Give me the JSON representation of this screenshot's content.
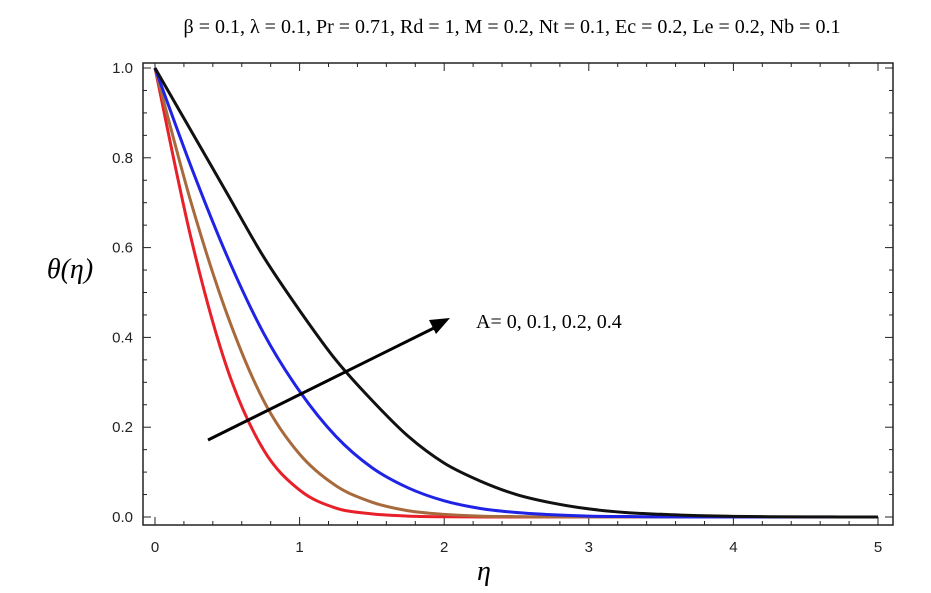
{
  "chart_data": {
    "type": "line",
    "title": "β = 0.1, λ = 0.1, Pr = 0.71, Rd = 1, M = 0.2, Nt = 0.1, Ec = 0.2, Le = 0.2, Nb = 0.1",
    "xlabel": "η",
    "ylabel": "θ(η)",
    "xlim": [
      0,
      5
    ],
    "ylim": [
      0,
      1
    ],
    "xticks": [
      "0",
      "1",
      "2",
      "3",
      "4",
      "5"
    ],
    "yticks": [
      "0.0",
      "0.2",
      "0.4",
      "0.6",
      "0.8",
      "1.0"
    ],
    "grid": false,
    "annotation": "A= 0, 0.1, 0.2, 0.4",
    "x": [
      0,
      0.25,
      0.5,
      0.75,
      1.0,
      1.25,
      1.5,
      1.75,
      2.0,
      2.25,
      2.5,
      2.75,
      3.0,
      3.25,
      3.5,
      3.75,
      4.0,
      4.25,
      4.5,
      4.75,
      5.0
    ],
    "series": [
      {
        "color": "#e8202a",
        "values": [
          1.0,
          0.62,
          0.33,
          0.15,
          0.06,
          0.02,
          0.007,
          0.002,
          0.0005,
          0.0001,
          0,
          0,
          0,
          0,
          0,
          0,
          0,
          0,
          0,
          0,
          0
        ]
      },
      {
        "color": "#a86a3c",
        "values": [
          1.0,
          0.7,
          0.45,
          0.26,
          0.14,
          0.07,
          0.033,
          0.014,
          0.006,
          0.002,
          0.0008,
          0.0003,
          0.0001,
          0,
          0,
          0,
          0,
          0,
          0,
          0,
          0
        ]
      },
      {
        "color": "#1f23e6",
        "values": [
          1.0,
          0.78,
          0.58,
          0.41,
          0.28,
          0.18,
          0.11,
          0.065,
          0.036,
          0.019,
          0.01,
          0.005,
          0.002,
          0.001,
          0.0004,
          0.0001,
          0,
          0,
          0,
          0,
          0
        ]
      },
      {
        "color": "#111111",
        "values": [
          1.0,
          0.86,
          0.72,
          0.58,
          0.46,
          0.35,
          0.26,
          0.18,
          0.12,
          0.08,
          0.05,
          0.031,
          0.018,
          0.01,
          0.006,
          0.003,
          0.0015,
          0.0007,
          0.0003,
          0.0001,
          0
        ]
      }
    ]
  }
}
